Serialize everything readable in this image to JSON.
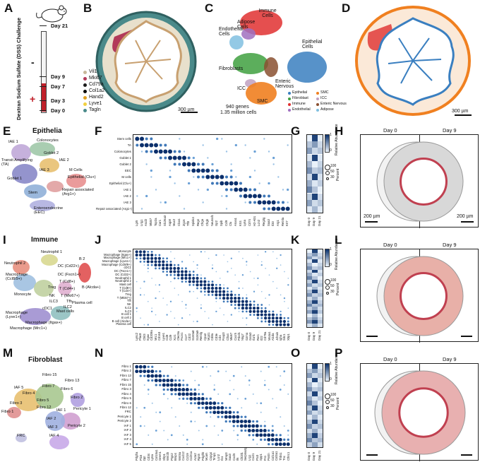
{
  "panel_letters": [
    "A",
    "B",
    "C",
    "D",
    "E",
    "F",
    "G",
    "H",
    "I",
    "J",
    "K",
    "L",
    "M",
    "N",
    "O",
    "P"
  ],
  "timeline": {
    "axis_label": "Dextran Sodium Sulfate (DSS) Challenge",
    "days": [
      "Day 21",
      "Day 9",
      "Day 7",
      "Day 3",
      "Day 0"
    ],
    "minus": "-",
    "plus": "+"
  },
  "panelB": {
    "legend": [
      {
        "label": "Vil1",
        "color": "#c8b89a"
      },
      {
        "label": "Mki67",
        "color": "#b23a5a"
      },
      {
        "label": "Cd79a",
        "color": "#1a1a1a"
      },
      {
        "label": "Col1a2",
        "color": "#0a0a0a"
      },
      {
        "label": "Hand2",
        "color": "#e0a020"
      },
      {
        "label": "Lyve1",
        "color": "#f2d040"
      },
      {
        "label": "Tagln",
        "color": "#4a8a8a"
      }
    ],
    "scale": "300 µm"
  },
  "panelC": {
    "clusters": [
      "Immune Cells",
      "Adipose Cells",
      "Endothelial Cells",
      "Epithelial Cells",
      "Fibroblasts",
      "Enteric Nervous",
      "ICC",
      "SMC"
    ],
    "stats_line1": "940 genes",
    "stats_line2": "1.35 million cells",
    "legend": [
      {
        "label": "Epithelial",
        "color": "#3a7fc0"
      },
      {
        "label": "SMC",
        "color": "#f08020"
      },
      {
        "label": "Fibroblast",
        "color": "#40a040"
      },
      {
        "label": "ICC",
        "color": "#c0a0c0"
      },
      {
        "label": "Immune",
        "color": "#e03030"
      },
      {
        "label": "Enteric Nervous",
        "color": "#8a5030"
      },
      {
        "label": "Endothelial",
        "color": "#a070c0"
      },
      {
        "label": "Adipose",
        "color": "#80c0e0"
      }
    ]
  },
  "panelD": {
    "scale": "300 µm"
  },
  "panelE": {
    "title": "Epithelia",
    "clusters": [
      "IAE 1",
      "Colonocytes",
      "Goblet 2",
      "IAE 2",
      "Transit Amplifying (TA)",
      "M Cells",
      "Epithelial (Clu+)",
      "IAE 3",
      "Goblet 1",
      "Repair associated (Arg1+)",
      "Stem",
      "Enteroendocrine (EEC)"
    ]
  },
  "panelF": {
    "rows": [
      "Stem cells",
      "TA",
      "Colonocytes",
      "Goblet 1",
      "Goblet 2",
      "EEC",
      "M cells",
      "Epithelial (Clu+)",
      "IAE 1",
      "IAE 2",
      "IAE 3",
      "Repair associated (Arg1+)"
    ],
    "cols": [
      "Lgr5",
      "Lrig1",
      "Ascl2",
      "Mki67",
      "Top2a",
      "Car1",
      "Slc26a3",
      "Aqp8",
      "Muc2",
      "Clca1",
      "Zg16",
      "Tff3",
      "Spink4",
      "Reg4",
      "Chga",
      "Chgb",
      "Neurod1",
      "Gp2",
      "Spib",
      "Ccl9",
      "Clu",
      "Anxa1",
      "Krt4",
      "Ly6a",
      "Cd74",
      "H2-Ab1",
      "Lcn2",
      "Reg3g",
      "Saa3",
      "Il33",
      "Arg1",
      "Retnla",
      "Krt7"
    ]
  },
  "panelG": {
    "legend_top": "Relative Abundance",
    "scale_max": "1",
    "scale_min": "0",
    "size_title": "Percent",
    "sizes": [
      "100",
      "50",
      "30"
    ],
    "days": [
      "Day 0",
      "Day 9",
      "Day 21"
    ]
  },
  "panelH": {
    "day_left": "Day 0",
    "day_right": "Day 9",
    "scale_left": "200 µm",
    "scale_right": "200 µm"
  },
  "panelI": {
    "title": "Immune",
    "clusters": [
      "Neutrophil 1",
      "Neutrophil 2",
      "DC (Cd22+)",
      "DC (Fscn1+)",
      "B 2",
      "Macrophage (Ccl8/9+)",
      "T (Cd8+)",
      "T (Cd4+)",
      "B (Alcda+)",
      "Treg",
      "T (Mki67+)",
      "Monocyte",
      "NK",
      "Tfh",
      "ILC3",
      "ILC2",
      "Plasma cell",
      "cDC1",
      "Mast cells",
      "Macrophage (Lyve1+)",
      "Macrophage (Itgax+)",
      "Macrophage (Mrc1+)"
    ]
  },
  "panelJ": {
    "rows": [
      "Monocyte",
      "Macrophage (Itgax+)",
      "Macrophage (Mrc1+)",
      "Macrophage (Lyve1+)",
      "Macrophage (Ccl8/9+)",
      "cDC1",
      "DC (Fscn1+)",
      "DC (Cd22+)",
      "Neutrophil 1",
      "Neutrophil 2",
      "Mast cell",
      "T (Cd8+)",
      "T (Cd4+)",
      "Treg",
      "T (Mki67+)",
      "Tfh",
      "NK",
      "ILC2",
      "ILC3",
      "B cell 1",
      "B cell 2",
      "B cell (Alcda+)",
      "Plasma cell"
    ],
    "cols": [
      "Ly6c2",
      "Plac8",
      "Chil3",
      "Itgax",
      "Cd209a",
      "Mrc1",
      "Cd163",
      "Lyve1",
      "Ccl8",
      "Ccl9",
      "Xcr1",
      "Clec9a",
      "Fscn1",
      "Ccr7",
      "Cd22",
      "S100a8",
      "S100a9",
      "Retnlg",
      "Cpa3",
      "Mcpt1",
      "Cd8a",
      "Cd3e",
      "Cd4",
      "Foxp3",
      "Ctla4",
      "Mki67",
      "Cxcr5",
      "Pdcd1",
      "Nkg7",
      "Gzma",
      "Gata3",
      "Il1rl1",
      "Rorc",
      "Il22",
      "Cd79a",
      "Ms4a1",
      "Alcda",
      "Jchain",
      "Igha",
      "Sdc1",
      "Xbp1"
    ]
  },
  "panelK": {
    "legend_top": "Relative Abundance",
    "scale_max": "1",
    "scale_min": "0",
    "size_title": "Percent",
    "sizes": [
      "100",
      "50",
      "30"
    ],
    "days": [
      "Day 0",
      "Day 9",
      "Day 21"
    ]
  },
  "panelL": {
    "day_left": "Day 0",
    "day_right": "Day 9"
  },
  "panelM": {
    "title": "Fibroblast",
    "clusters": [
      "Fibro 15",
      "Fibro 13",
      "IAF 5",
      "Fibro 7",
      "Fibro 6",
      "Fibro 4",
      "Fibro 2",
      "Fibro 3",
      "Fibro 5",
      "Fibro 12",
      "IAF 1",
      "Pericyte 1",
      "Fibro 1",
      "IAF 2",
      "IAF 3",
      "Pericyte 2",
      "FRC",
      "IAF 4"
    ]
  },
  "panelN": {
    "rows": [
      "Fibro 1",
      "Fibro 2",
      "Fibro 13",
      "Fibro 7",
      "Fibro 15",
      "Fibro 3",
      "Fibro 4",
      "Fibro 5",
      "Fibro 6",
      "Fibro 12",
      "FRC",
      "Pericyte 1",
      "Pericyte 2",
      "IAF 1",
      "IAF 2",
      "IAF 3",
      "IAF 4",
      "IAF 5"
    ],
    "cols": [
      "Pdgfra",
      "Pi16",
      "Dpt",
      "Cd34",
      "Ly6a",
      "Col15a1",
      "Grem1",
      "Sfrp1",
      "Wnt2b",
      "Ptgs2",
      "Bmp4",
      "Wnt5a",
      "Cxcl12",
      "Ccl19",
      "Ccl21a",
      "Acta2",
      "Rgs5",
      "Pdgfrb",
      "Mcam",
      "Cspg4",
      "Timp1",
      "Lcn2",
      "Il11",
      "Mmp3",
      "Saa3",
      "Cxcl5",
      "Il6",
      "Chi3l1",
      "Serpina3g",
      "Lrg1",
      "Cxcl1",
      "Ptx3",
      "Spp1",
      "Fn1",
      "Postn",
      "Col1a1",
      "Col3a1",
      "Thbs1",
      "Tnc",
      "Cthrc1"
    ]
  },
  "panelO": {
    "legend_top": "Relative Abundance",
    "scale_max": "1",
    "scale_min": "0",
    "size_title": "Percent",
    "sizes": [
      "100",
      "50",
      "30"
    ],
    "days": [
      "Day 0",
      "Day 9",
      "Day 21"
    ]
  },
  "panelP": {
    "day_left": "Day 0",
    "day_right": "Day 9"
  },
  "colors": {
    "dot_dark": "#0b2f6b",
    "dot_light": "#9cc3e6",
    "heat_low": "#eaf2fb",
    "heat_high": "#08306b",
    "tissue_gray": "#b9b9b9",
    "tissue_blue": "#5060b0",
    "tissue_red": "#c03040",
    "tissue_olive": "#9a9a30"
  }
}
